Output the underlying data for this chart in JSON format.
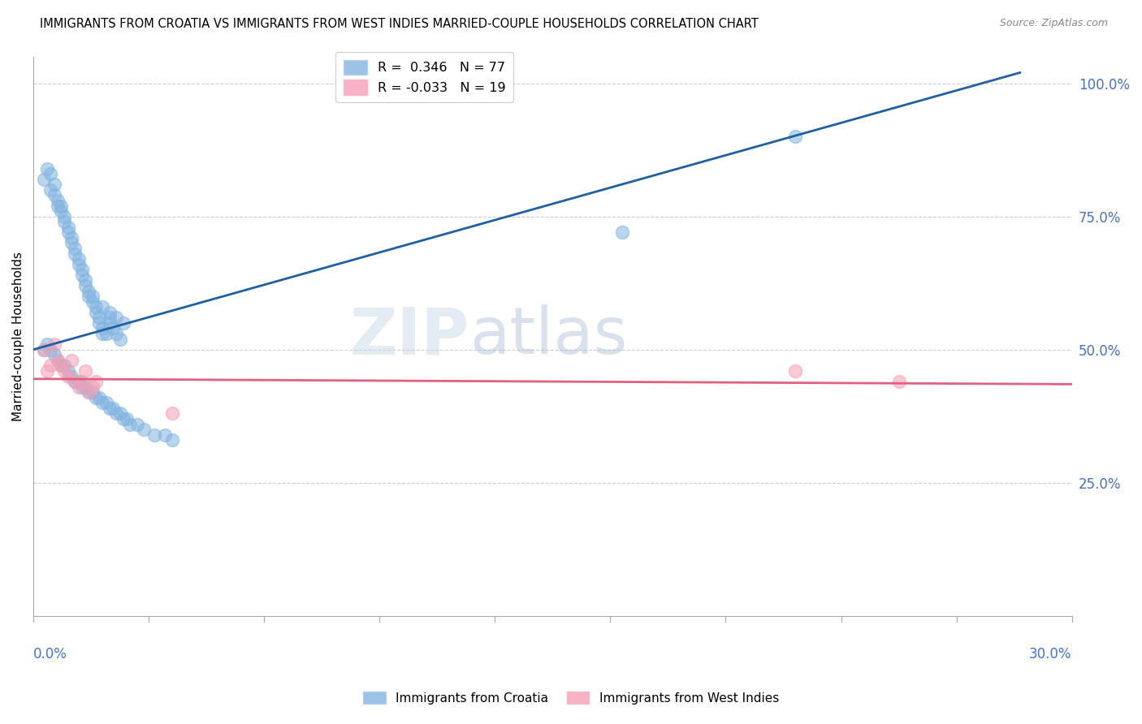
{
  "title": "IMMIGRANTS FROM CROATIA VS IMMIGRANTS FROM WEST INDIES MARRIED-COUPLE HOUSEHOLDS CORRELATION CHART",
  "source": "Source: ZipAtlas.com",
  "ylabel": "Married-couple Households",
  "xlim": [
    0.0,
    0.3
  ],
  "ylim": [
    0.0,
    1.05
  ],
  "legend_r_croatia": "0.346",
  "legend_n_croatia": "77",
  "legend_r_westindies": "-0.033",
  "legend_n_westindies": "19",
  "color_croatia": "#82b4e0",
  "color_westindies": "#f4a0b5",
  "trendline_croatia_color": "#2060a0",
  "trendline_westindies_color": "#e06080",
  "trendline_croatia_x0": 0.0,
  "trendline_croatia_y0": 0.5,
  "trendline_croatia_x1": 0.285,
  "trendline_croatia_y1": 1.02,
  "trendline_wi_x0": 0.0,
  "trendline_wi_y0": 0.445,
  "trendline_wi_x1": 0.3,
  "trendline_wi_y1": 0.435,
  "croatia_x": [
    0.003,
    0.004,
    0.005,
    0.005,
    0.006,
    0.006,
    0.007,
    0.007,
    0.008,
    0.008,
    0.009,
    0.009,
    0.01,
    0.01,
    0.011,
    0.011,
    0.012,
    0.012,
    0.013,
    0.013,
    0.014,
    0.014,
    0.015,
    0.015,
    0.016,
    0.016,
    0.017,
    0.017,
    0.018,
    0.018,
    0.019,
    0.019,
    0.02,
    0.02,
    0.021,
    0.022,
    0.022,
    0.023,
    0.024,
    0.025,
    0.003,
    0.004,
    0.005,
    0.006,
    0.007,
    0.008,
    0.009,
    0.01,
    0.011,
    0.012,
    0.013,
    0.014,
    0.015,
    0.016,
    0.017,
    0.018,
    0.019,
    0.02,
    0.021,
    0.022,
    0.023,
    0.024,
    0.025,
    0.026,
    0.027,
    0.028,
    0.03,
    0.032,
    0.035,
    0.038,
    0.04,
    0.02,
    0.022,
    0.024,
    0.026,
    0.17,
    0.22
  ],
  "croatia_y": [
    0.82,
    0.84,
    0.83,
    0.8,
    0.81,
    0.79,
    0.78,
    0.77,
    0.77,
    0.76,
    0.75,
    0.74,
    0.73,
    0.72,
    0.71,
    0.7,
    0.69,
    0.68,
    0.67,
    0.66,
    0.65,
    0.64,
    0.63,
    0.62,
    0.61,
    0.6,
    0.6,
    0.59,
    0.58,
    0.57,
    0.56,
    0.55,
    0.54,
    0.53,
    0.53,
    0.56,
    0.55,
    0.54,
    0.53,
    0.52,
    0.5,
    0.51,
    0.5,
    0.49,
    0.48,
    0.47,
    0.47,
    0.46,
    0.45,
    0.44,
    0.44,
    0.43,
    0.43,
    0.42,
    0.42,
    0.41,
    0.41,
    0.4,
    0.4,
    0.39,
    0.39,
    0.38,
    0.38,
    0.37,
    0.37,
    0.36,
    0.36,
    0.35,
    0.34,
    0.34,
    0.33,
    0.58,
    0.57,
    0.56,
    0.55,
    0.72,
    0.9
  ],
  "westindies_x": [
    0.003,
    0.004,
    0.005,
    0.006,
    0.007,
    0.008,
    0.009,
    0.01,
    0.011,
    0.012,
    0.013,
    0.014,
    0.015,
    0.016,
    0.017,
    0.018,
    0.04,
    0.22,
    0.25
  ],
  "westindies_y": [
    0.5,
    0.46,
    0.47,
    0.51,
    0.48,
    0.47,
    0.46,
    0.45,
    0.48,
    0.44,
    0.43,
    0.44,
    0.46,
    0.42,
    0.43,
    0.44,
    0.38,
    0.46,
    0.44
  ]
}
